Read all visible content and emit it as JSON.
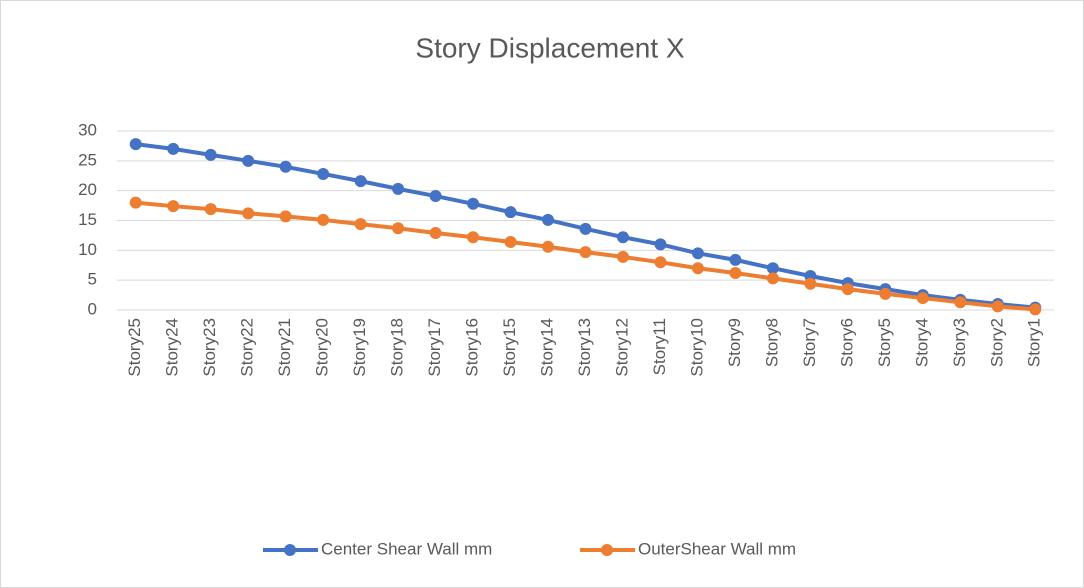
{
  "chart_data": {
    "type": "line",
    "title": "Story Displacement X",
    "categories": [
      "Story25",
      "Story24",
      "Story23",
      "Story22",
      "Story21",
      "Story20",
      "Story19",
      "Story18",
      "Story17",
      "Story16",
      "Story15",
      "Story14",
      "Story13",
      "Story12",
      "Story11",
      "Story10",
      "Story9",
      "Story8",
      "Story7",
      "Story6",
      "Story5",
      "Story4",
      "Story3",
      "Story2",
      "Story1"
    ],
    "series": [
      {
        "name": "Center Shear Wall mm",
        "color": "#4472c4",
        "values": [
          27.8,
          27,
          26,
          25,
          24,
          22.8,
          21.6,
          20.3,
          19.1,
          17.8,
          16.4,
          15.1,
          13.6,
          12.2,
          11,
          9.5,
          8.4,
          7,
          5.7,
          4.5,
          3.5,
          2.5,
          1.7,
          1,
          0.4
        ]
      },
      {
        "name": "OuterShear Wall mm",
        "color": "#ed7d31",
        "values": [
          18,
          17.4,
          16.9,
          16.2,
          15.7,
          15.1,
          14.4,
          13.7,
          12.9,
          12.2,
          11.4,
          10.6,
          9.7,
          8.9,
          8,
          7,
          6.2,
          5.3,
          4.4,
          3.5,
          2.7,
          2,
          1.3,
          0.6,
          0.1
        ]
      }
    ],
    "ylim": [
      0,
      30
    ],
    "yticks": [
      0,
      5,
      10,
      15,
      20,
      25,
      30
    ],
    "grid": true,
    "legend": "bottom"
  }
}
